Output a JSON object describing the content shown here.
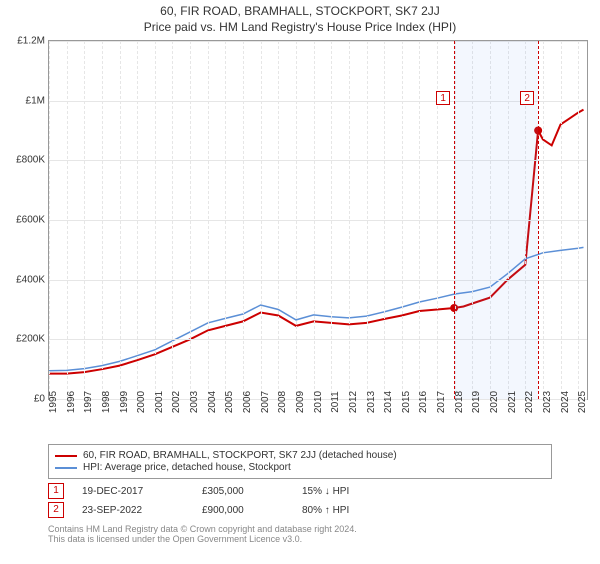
{
  "title": "60, FIR ROAD, BRAMHALL, STOCKPORT, SK7 2JJ",
  "subtitle": "Price paid vs. HM Land Registry's House Price Index (HPI)",
  "chart": {
    "type": "line",
    "background_color": "#ffffff",
    "grid_color": "#e6e6e6",
    "border_color": "#999999",
    "x_range": [
      1995,
      2025.5
    ],
    "x_ticks": [
      1995,
      1996,
      1997,
      1998,
      1999,
      2000,
      2001,
      2002,
      2003,
      2004,
      2005,
      2006,
      2007,
      2008,
      2009,
      2010,
      2011,
      2012,
      2013,
      2014,
      2015,
      2016,
      2017,
      2018,
      2019,
      2020,
      2021,
      2022,
      2023,
      2024,
      2025
    ],
    "y_range": [
      0,
      1200000
    ],
    "y_ticks": [
      {
        "v": 0,
        "label": "£0"
      },
      {
        "v": 200000,
        "label": "£200K"
      },
      {
        "v": 400000,
        "label": "£400K"
      },
      {
        "v": 600000,
        "label": "£600K"
      },
      {
        "v": 800000,
        "label": "£800K"
      },
      {
        "v": 1000000,
        "label": "£1M"
      },
      {
        "v": 1200000,
        "label": "£1.2M"
      }
    ],
    "band": {
      "start": 2017.97,
      "end": 2022.73,
      "color": "rgba(100,149,237,0.08)"
    },
    "sale_lines": [
      {
        "x": 2017.97,
        "color": "#cc0000"
      },
      {
        "x": 2022.73,
        "color": "#cc0000"
      }
    ],
    "sale_markers": [
      {
        "n": "1",
        "x": 2017.97,
        "y_box": 0.86,
        "dot_y": 305000,
        "color": "#cc0000"
      },
      {
        "n": "2",
        "x": 2022.73,
        "y_box": 0.86,
        "dot_y": 900000,
        "color": "#cc0000"
      }
    ],
    "series": [
      {
        "name": "property",
        "color": "#cc0000",
        "width": 2,
        "points": [
          [
            1995,
            85000
          ],
          [
            1996,
            85000
          ],
          [
            1997,
            90000
          ],
          [
            1998,
            100000
          ],
          [
            1999,
            112000
          ],
          [
            2000,
            130000
          ],
          [
            2001,
            150000
          ],
          [
            2002,
            175000
          ],
          [
            2003,
            200000
          ],
          [
            2004,
            230000
          ],
          [
            2005,
            245000
          ],
          [
            2006,
            260000
          ],
          [
            2007,
            290000
          ],
          [
            2008,
            280000
          ],
          [
            2009,
            245000
          ],
          [
            2010,
            260000
          ],
          [
            2011,
            255000
          ],
          [
            2012,
            250000
          ],
          [
            2013,
            255000
          ],
          [
            2014,
            268000
          ],
          [
            2015,
            280000
          ],
          [
            2016,
            295000
          ],
          [
            2017,
            300000
          ],
          [
            2017.97,
            305000
          ],
          [
            2018.5,
            310000
          ],
          [
            2019,
            320000
          ],
          [
            2020,
            340000
          ],
          [
            2021,
            400000
          ],
          [
            2022,
            450000
          ],
          [
            2022.73,
            900000
          ],
          [
            2023,
            870000
          ],
          [
            2023.5,
            850000
          ],
          [
            2024,
            920000
          ],
          [
            2024.5,
            940000
          ],
          [
            2025,
            960000
          ],
          [
            2025.3,
            970000
          ]
        ]
      },
      {
        "name": "hpi",
        "color": "#5b8fd6",
        "width": 1.5,
        "points": [
          [
            1995,
            95000
          ],
          [
            1996,
            96000
          ],
          [
            1997,
            102000
          ],
          [
            1998,
            112000
          ],
          [
            1999,
            126000
          ],
          [
            2000,
            145000
          ],
          [
            2001,
            165000
          ],
          [
            2002,
            195000
          ],
          [
            2003,
            225000
          ],
          [
            2004,
            255000
          ],
          [
            2005,
            270000
          ],
          [
            2006,
            285000
          ],
          [
            2007,
            315000
          ],
          [
            2008,
            300000
          ],
          [
            2009,
            265000
          ],
          [
            2010,
            282000
          ],
          [
            2011,
            276000
          ],
          [
            2012,
            272000
          ],
          [
            2013,
            278000
          ],
          [
            2014,
            292000
          ],
          [
            2015,
            308000
          ],
          [
            2016,
            325000
          ],
          [
            2017,
            338000
          ],
          [
            2018,
            352000
          ],
          [
            2019,
            360000
          ],
          [
            2020,
            375000
          ],
          [
            2021,
            420000
          ],
          [
            2022,
            470000
          ],
          [
            2023,
            490000
          ],
          [
            2024,
            498000
          ],
          [
            2025,
            505000
          ],
          [
            2025.3,
            508000
          ]
        ]
      }
    ]
  },
  "legend": {
    "items": [
      {
        "color": "#cc0000",
        "label": "60, FIR ROAD, BRAMHALL, STOCKPORT, SK7 2JJ (detached house)"
      },
      {
        "color": "#5b8fd6",
        "label": "HPI: Average price, detached house, Stockport"
      }
    ]
  },
  "sales": [
    {
      "n": "1",
      "color": "#cc0000",
      "date": "19-DEC-2017",
      "price": "£305,000",
      "delta": "15% ↓ HPI"
    },
    {
      "n": "2",
      "color": "#cc0000",
      "date": "23-SEP-2022",
      "price": "£900,000",
      "delta": "80% ↑ HPI"
    }
  ],
  "footer": {
    "line1": "Contains HM Land Registry data © Crown copyright and database right 2024.",
    "line2": "This data is licensed under the Open Government Licence v3.0."
  }
}
